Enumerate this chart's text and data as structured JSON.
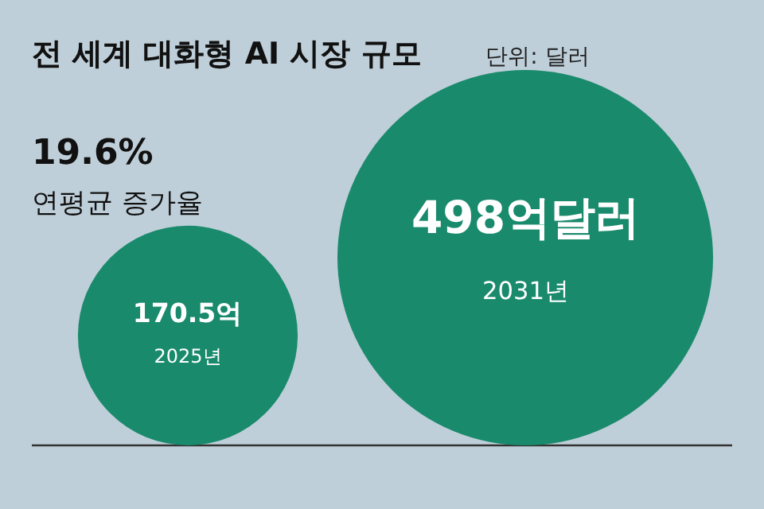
{
  "chart_data": {
    "type": "other",
    "title": "전 세계 대화형 AI 시장 규모",
    "subtitle": "단위: 달러",
    "categories": [
      "2025년",
      "2031년"
    ],
    "values": [
      170.5,
      498
    ],
    "value_labels": [
      "170.5억",
      "498억달러"
    ],
    "color": "#1a8a6c",
    "annotations": [
      "19.6%",
      "연평균 증가율"
    ]
  }
}
